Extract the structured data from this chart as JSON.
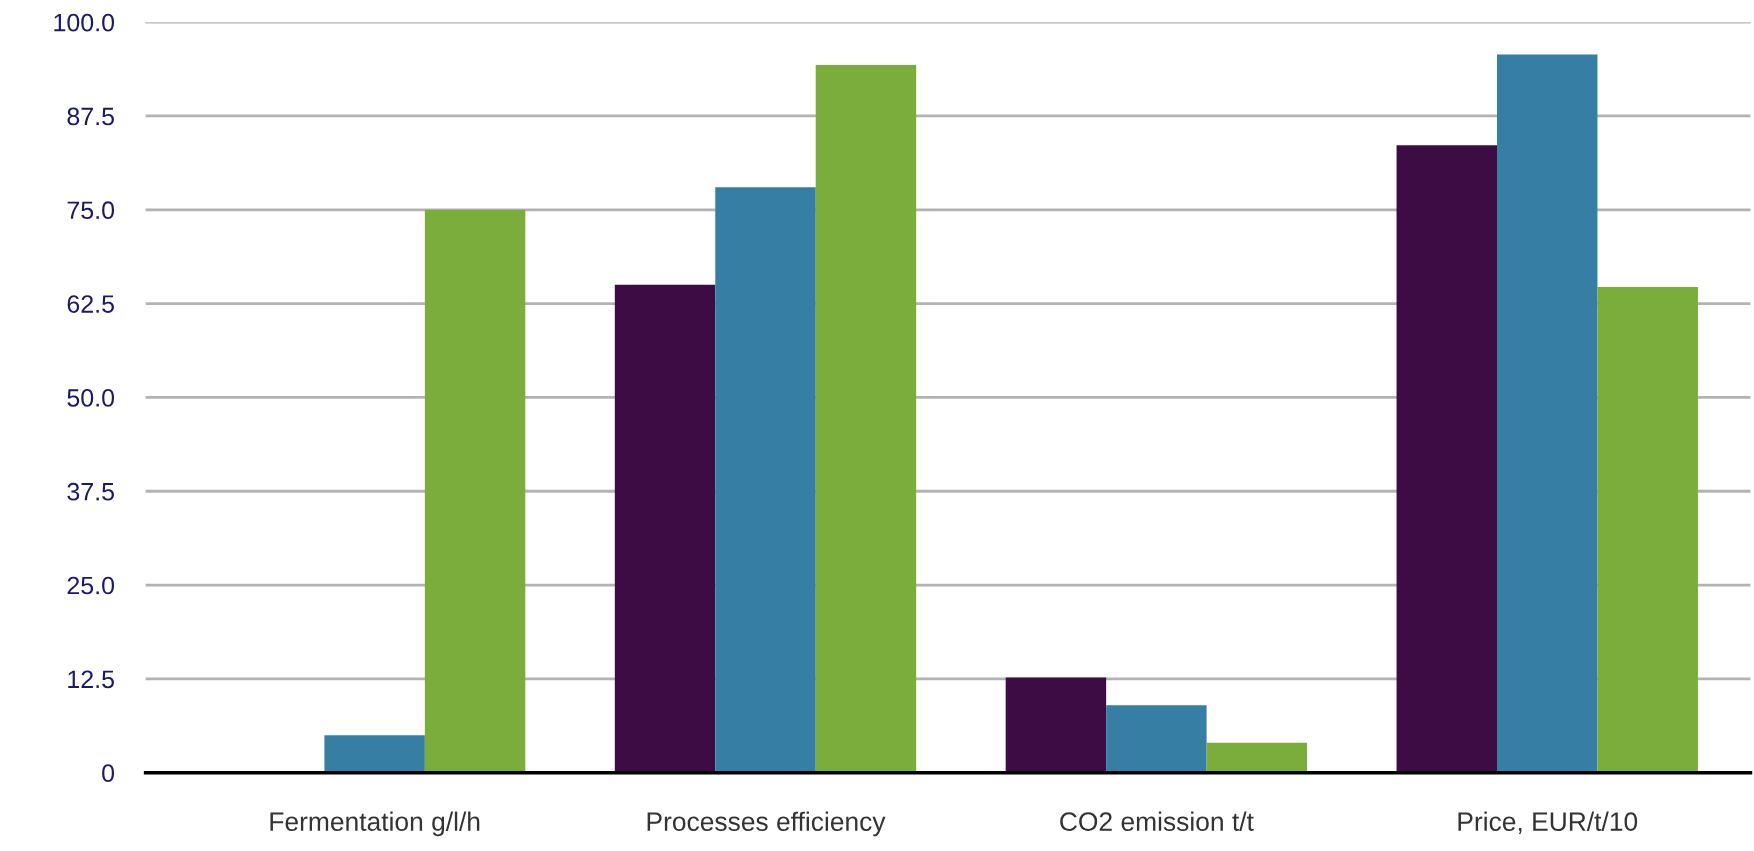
{
  "chart_data": {
    "type": "bar",
    "categories": [
      "Fermentation g/l/h",
      "Processes efficiency",
      "CO2 emission t/t",
      "Price, EUR/t/10"
    ],
    "series": [
      {
        "color": "#3d0c45",
        "values": [
          null,
          65,
          12.7,
          83.6
        ]
      },
      {
        "color": "#367ea3",
        "values": [
          5,
          78,
          9,
          95.7
        ]
      },
      {
        "color": "#7aad3c",
        "values": [
          75,
          94.3,
          4,
          64.7
        ]
      }
    ],
    "ylim": [
      0,
      100
    ],
    "yticks": [
      0,
      12.5,
      {
        "value": 25,
        "label": "25.0"
      },
      37.5,
      {
        "value": 50,
        "label": "50.0"
      },
      62.5,
      {
        "value": 75,
        "label": "75.0"
      },
      87.5,
      {
        "value": 100,
        "label": "100.0"
      }
    ],
    "grid": "y",
    "legend": false
  }
}
